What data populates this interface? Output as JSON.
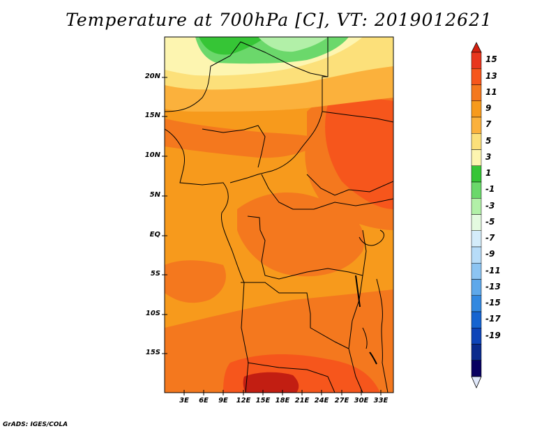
{
  "title": "Temperature at 700hPa [C], VT: 2019012621",
  "credit": "GrADS: IGES/COLA",
  "lat_labels": [
    "20N",
    "15N",
    "10N",
    "5N",
    "EQ",
    "5S",
    "10S",
    "15S"
  ],
  "lon_labels": [
    "3E",
    "6E",
    "9E",
    "12E",
    "15E",
    "18E",
    "21E",
    "24E",
    "27E",
    "30E",
    "33E"
  ],
  "colorbar": {
    "labels": [
      "15",
      "13",
      "11",
      "9",
      "7",
      "5",
      "3",
      "1",
      "-1",
      "-3",
      "-5",
      "-7",
      "-9",
      "-11",
      "-13",
      "-15",
      "-17",
      "-19"
    ],
    "colors": [
      "#e8361e",
      "#f6561c",
      "#f4781e",
      "#f79a1c",
      "#fbb13c",
      "#fce07a",
      "#fdf5b0",
      "#36c536",
      "#6bd86b",
      "#b2f0a8",
      "#e4fae0",
      "#d4ecfa",
      "#b7dcf8",
      "#8cc4f2",
      "#5ea8ea",
      "#3288e0",
      "#1664d0",
      "#0e44b8",
      "#0a2a8c",
      "#080060"
    ],
    "top_arrow_color": "#d42010",
    "bottom_arrow_color": "#e0e8fa"
  },
  "map_colors": {
    "warm_dark": "#e8361e",
    "warm_13": "#f6561c",
    "warm_11": "#f4781e",
    "warm_9": "#f79a1c",
    "warm_7": "#fbb13c",
    "warm_5": "#fce07a",
    "warm_3": "#fdf5b0",
    "green_1": "#36c536",
    "green_m1": "#6bd86b",
    "green_m3": "#b2f0a8",
    "deep_red": "#c21e12"
  },
  "chart_data": {
    "type": "heatmap",
    "title": "Temperature at 700hPa [C], VT: 2019012621",
    "variable": "Temperature",
    "units": "C",
    "level": "700hPa",
    "valid_time": "2019012621",
    "lon_ticks": [
      "3E",
      "6E",
      "9E",
      "12E",
      "15E",
      "18E",
      "21E",
      "24E",
      "27E",
      "30E",
      "33E"
    ],
    "lat_ticks": [
      "20N",
      "15N",
      "10N",
      "5N",
      "EQ",
      "5S",
      "10S",
      "15S"
    ],
    "colorbar_levels": [
      15,
      13,
      11,
      9,
      7,
      5,
      3,
      1,
      -1,
      -3,
      -5,
      -7,
      -9,
      -11,
      -13,
      -15,
      -17,
      -19
    ],
    "approx_range": [
      -3,
      15
    ]
  }
}
